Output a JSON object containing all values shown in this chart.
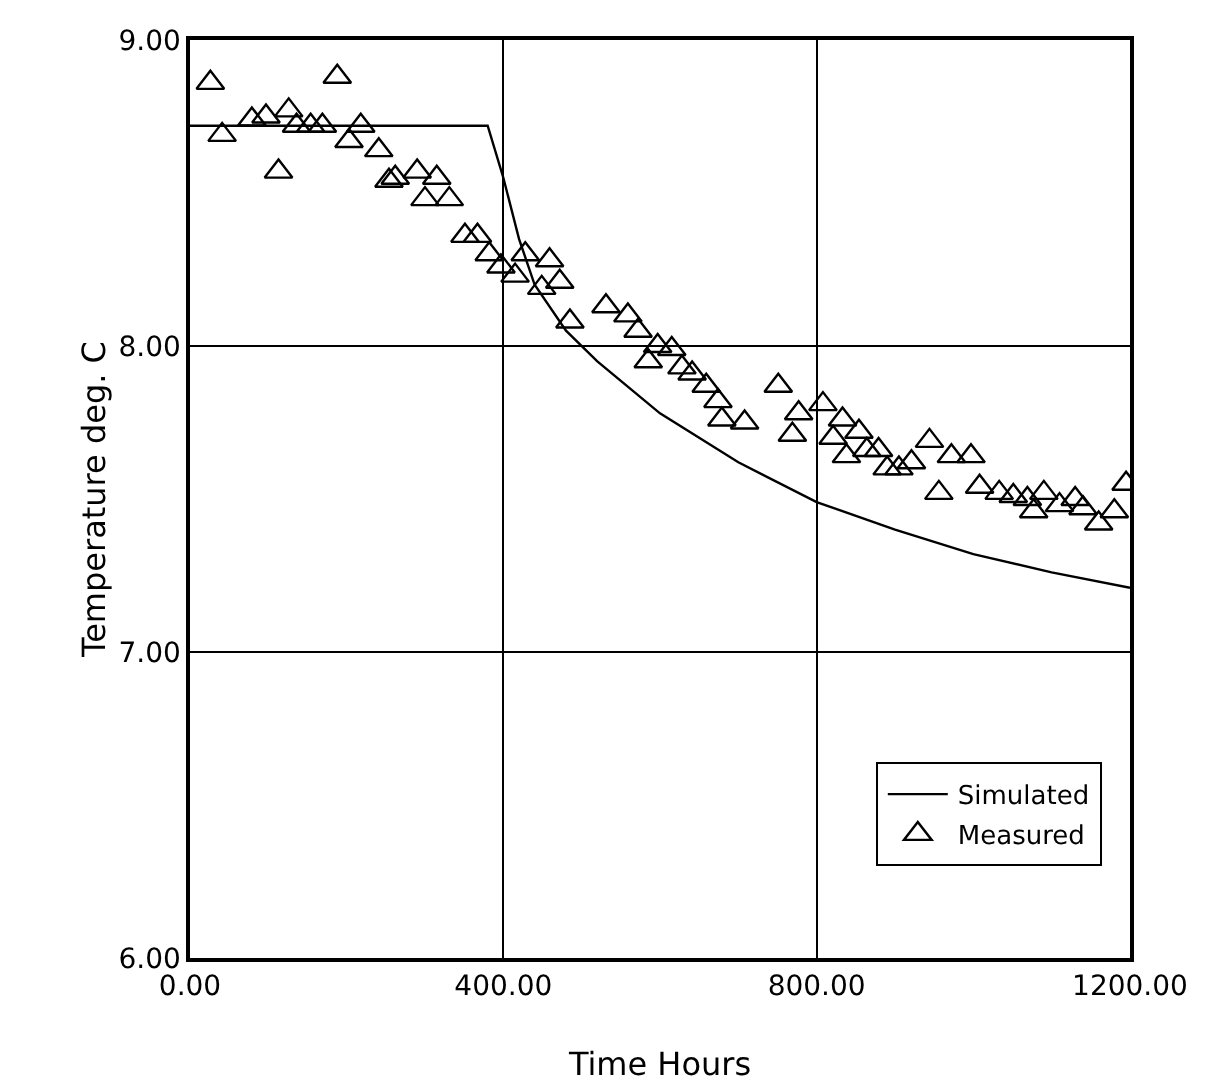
{
  "chart_data": {
    "type": "line",
    "xlabel": "Time Hours",
    "ylabel": "Temperature deg. C",
    "xlim": [
      0,
      1200
    ],
    "ylim": [
      6,
      9
    ],
    "xticks": [
      {
        "value": 0,
        "label": "0.00"
      },
      {
        "value": 400,
        "label": "400.00"
      },
      {
        "value": 800,
        "label": "800.00"
      },
      {
        "value": 1200,
        "label": "1200.00"
      }
    ],
    "yticks": [
      {
        "value": 6,
        "label": "6.00"
      },
      {
        "value": 7,
        "label": "7.00"
      },
      {
        "value": 8,
        "label": "8.00"
      },
      {
        "value": 9,
        "label": "9.00"
      }
    ],
    "grid": true,
    "legend": "bottom right",
    "series": [
      {
        "name": "Simulated",
        "color": "#000000",
        "marker": "none",
        "line_style": "solid",
        "x": [
          0,
          100,
          200,
          300,
          380,
          400,
          420,
          440,
          480,
          520,
          600,
          700,
          800,
          900,
          1000,
          1100,
          1200
        ],
        "values": [
          8.72,
          8.72,
          8.72,
          8.72,
          8.72,
          8.55,
          8.35,
          8.2,
          8.05,
          7.95,
          7.78,
          7.62,
          7.49,
          7.4,
          7.32,
          7.26,
          7.21
        ]
      },
      {
        "name": "Measured",
        "type": "scatter",
        "color": "#000000",
        "marker": "triangle",
        "x": [
          26,
          41,
          79,
          97,
          113,
          126,
          136,
          154,
          169,
          188,
          203,
          218,
          241,
          254,
          262,
          290,
          300,
          315,
          331,
          351,
          367,
          382,
          397,
          415,
          428,
          449,
          459,
          472,
          485,
          531,
          559,
          572,
          585,
          597,
          615,
          628,
          641,
          659,
          674,
          679,
          708,
          751,
          769,
          777,
          808,
          821,
          833,
          838,
          854,
          864,
          879,
          890,
          905,
          921,
          944,
          956,
          972,
          997,
          1008,
          1033,
          1051,
          1069,
          1077,
          1090,
          1110,
          1130,
          1140,
          1160,
          1180,
          1195
        ],
        "values": [
          8.86,
          8.69,
          8.74,
          8.75,
          8.57,
          8.77,
          8.72,
          8.72,
          8.72,
          8.88,
          8.67,
          8.72,
          8.64,
          8.54,
          8.55,
          8.57,
          8.48,
          8.55,
          8.48,
          8.36,
          8.36,
          8.3,
          8.26,
          8.23,
          8.3,
          8.19,
          8.28,
          8.21,
          8.08,
          8.13,
          8.1,
          8.05,
          7.95,
          8,
          7.99,
          7.93,
          7.91,
          7.87,
          7.82,
          7.76,
          7.75,
          7.87,
          7.71,
          7.78,
          7.81,
          7.7,
          7.76,
          7.64,
          7.72,
          7.66,
          7.66,
          7.6,
          7.6,
          7.62,
          7.69,
          7.52,
          7.64,
          7.64,
          7.54,
          7.52,
          7.51,
          7.5,
          7.46,
          7.52,
          7.48,
          7.5,
          7.47,
          7.42,
          7.46,
          7.55
        ]
      }
    ]
  }
}
